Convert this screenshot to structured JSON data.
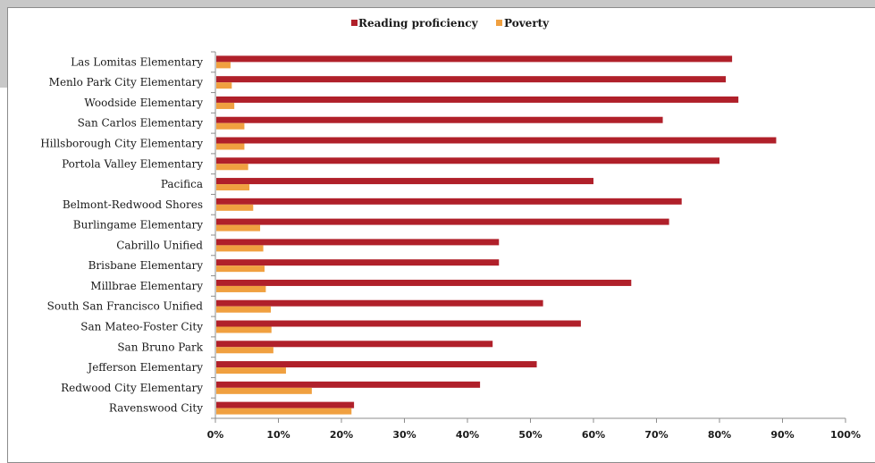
{
  "chart_data": {
    "type": "bar",
    "orientation": "horizontal",
    "categories": [
      "Las Lomitas Elementary",
      "Menlo Park City Elementary",
      "Woodside Elementary",
      "San Carlos Elementary",
      "Hillsborough City Elementary",
      "Portola Valley Elementary",
      "Pacifica",
      "Belmont-Redwood Shores",
      "Burlingame Elementary",
      "Cabrillo Unified",
      "Brisbane Elementary",
      "Millbrae Elementary",
      "South San Francisco Unified",
      "San Mateo-Foster City",
      "San Bruno Park",
      "Jefferson Elementary",
      "Redwood City Elementary",
      "Ravenswood City"
    ],
    "series": [
      {
        "name": "Reading proficiency",
        "color": "#b0202a",
        "values": [
          0.82,
          0.81,
          0.83,
          0.71,
          0.89,
          0.8,
          0.6,
          0.74,
          0.72,
          0.45,
          0.45,
          0.66,
          0.52,
          0.58,
          0.44,
          0.51,
          0.42,
          0.22
        ]
      },
      {
        "name": "Poverty",
        "color": "#f0a040",
        "values": [
          0.024,
          0.026,
          0.03,
          0.046,
          0.046,
          0.052,
          0.054,
          0.06,
          0.071,
          0.076,
          0.078,
          0.08,
          0.088,
          0.089,
          0.092,
          0.112,
          0.153,
          0.216
        ]
      }
    ],
    "xlim": [
      0,
      1
    ],
    "xticks": [
      0,
      0.1,
      0.2,
      0.3,
      0.4,
      0.5,
      0.6,
      0.7,
      0.8,
      0.9,
      1.0
    ],
    "xtick_labels": [
      "0%",
      "10%",
      "20%",
      "30%",
      "40%",
      "50%",
      "60%",
      "70%",
      "80%",
      "90%",
      "100%"
    ],
    "legend_position": "top",
    "grid": false,
    "title": "",
    "xlabel": "",
    "ylabel": ""
  }
}
